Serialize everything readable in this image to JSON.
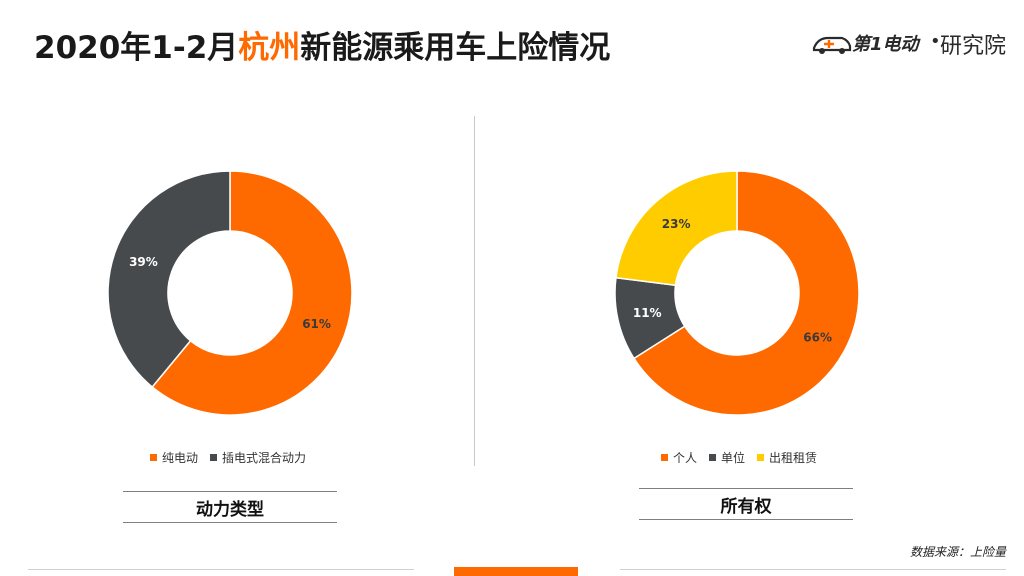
{
  "header": {
    "title_prefix": "2020年1-2月",
    "title_highlight": "杭州",
    "title_suffix": "新能源乘用车上险情况"
  },
  "logo": {
    "brand": "第1电动",
    "dot": "•",
    "institute": "研究院"
  },
  "colors": {
    "orange": "#ff6a00",
    "dark_gray": "#474a4d",
    "yellow": "#ffcc00",
    "accent": "#ff6a00"
  },
  "chart_data": [
    {
      "type": "pie",
      "title": "动力类型",
      "categories": [
        "纯电动",
        "插电式混合动力"
      ],
      "values": [
        61,
        39
      ],
      "labels": [
        "61%",
        "39%"
      ],
      "colors": [
        "#ff6a00",
        "#474a4d"
      ],
      "legend": "bottom"
    },
    {
      "type": "pie",
      "title": "所有权",
      "categories": [
        "个人",
        "单位",
        "出租租赁"
      ],
      "values": [
        66,
        11,
        23
      ],
      "labels": [
        "66%",
        "11%",
        "23%"
      ],
      "colors": [
        "#ff6a00",
        "#474a4d",
        "#ffcc00"
      ],
      "legend": "bottom"
    }
  ],
  "footer": {
    "source": "数据来源：上险量"
  }
}
